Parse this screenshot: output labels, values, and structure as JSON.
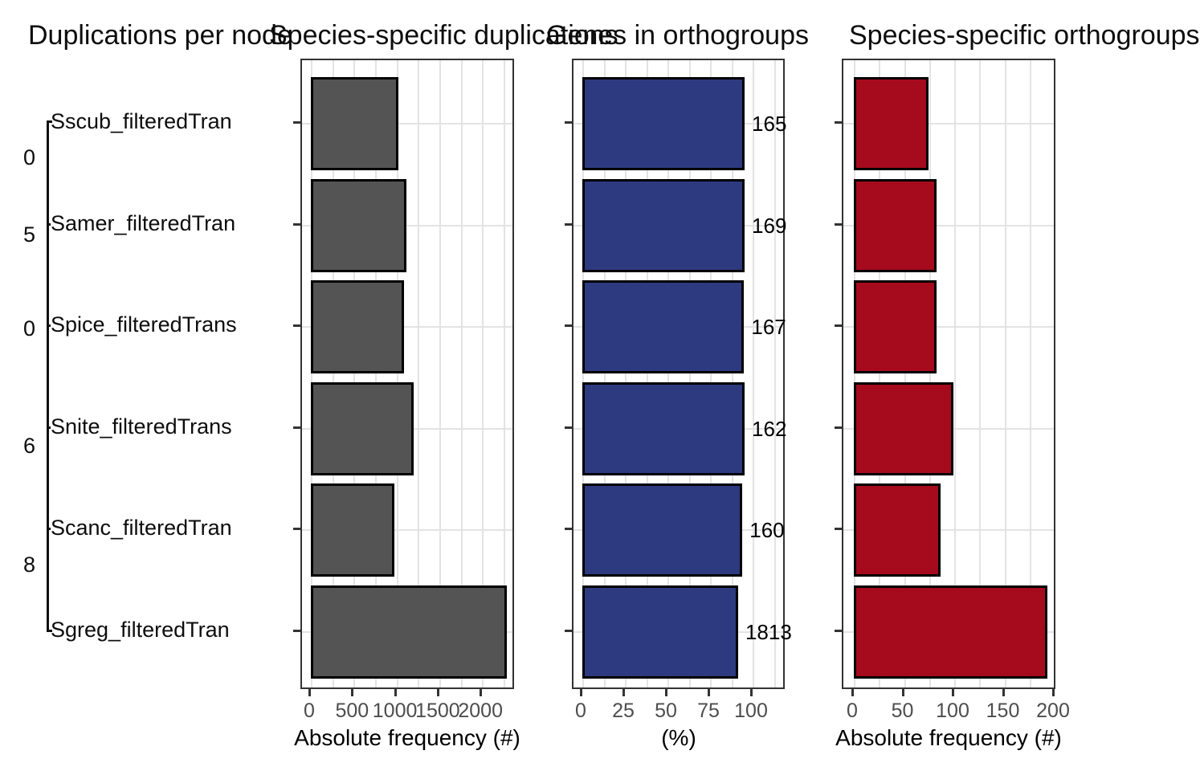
{
  "figure": {
    "background": "#FFFFFF",
    "titles": [
      {
        "text": "Duplications per node",
        "x": 35
      },
      {
        "text": "Species-specific duplications",
        "x": 335
      },
      {
        "text": "Genes in orthogroups",
        "x": 680
      },
      {
        "text": "Species-specific orthogroups",
        "x": 1057
      }
    ]
  },
  "colors": {
    "gray_bar": "#545454",
    "blue_bar": "#2E3A80",
    "red_bar": "#A50B1C",
    "bar_outline": "#000000",
    "gridline": "#E3E3E3",
    "panel_border": "#333333",
    "tick_label": "#4D4D4D"
  },
  "chart_data": [
    {
      "type": "tree",
      "title": "Duplications per node",
      "tips": [
        "Sscub_filteredTran",
        "Samer_filteredTran",
        "Spice_filteredTrans",
        "Snite_filteredTrans",
        "Scanc_filteredTran",
        "Sgreg_filteredTran"
      ],
      "node_label_fragments_clipped": [
        "0",
        "5",
        "0",
        "6",
        "8"
      ]
    },
    {
      "type": "bar",
      "title": "Species-specific duplications",
      "categories": [
        "Sscub_filteredTran",
        "Samer_filteredTran",
        "Spice_filteredTrans",
        "Snite_filteredTrans",
        "Scanc_filteredTran",
        "Sgreg_filteredTran"
      ],
      "values": [
        1020,
        1120,
        1085,
        1205,
        975,
        2285
      ],
      "values_estimated_from_pixels": true,
      "xlabel": "Absolute frequency (#)",
      "xticks": [
        0,
        500,
        1000,
        1500,
        2000
      ],
      "xlim": [
        0,
        2390
      ],
      "grid_minor_step": 250,
      "bar_color": "#545454",
      "legend": "none",
      "grid": "on"
    },
    {
      "type": "bar",
      "title": "Genes in orthogroups",
      "categories": [
        "Sscub_filteredTran",
        "Samer_filteredTran",
        "Spice_filteredTrans",
        "Snite_filteredTrans",
        "Scanc_filteredTran",
        "Sgreg_filteredTran"
      ],
      "values": [
        95.3,
        95.3,
        95.0,
        95.3,
        94.0,
        91.5
      ],
      "values_estimated_from_pixels": true,
      "bar_labels_clipped": [
        "165",
        "169",
        "167",
        "162",
        "160",
        "1813"
      ],
      "xlabel": "(%)",
      "xticks": [
        0,
        25,
        50,
        75,
        100
      ],
      "xlim": [
        0,
        120
      ],
      "grid_minor_step": 12.5,
      "bar_color": "#2E3A80",
      "legend": "none",
      "grid": "on"
    },
    {
      "type": "bar",
      "title": "Species-specific orthogroups",
      "categories": [
        "Sscub_filteredTran",
        "Samer_filteredTran",
        "Spice_filteredTrans",
        "Snite_filteredTrans",
        "Scanc_filteredTran",
        "Sgreg_filteredTran"
      ],
      "values": [
        74,
        82,
        82,
        99,
        86,
        193
      ],
      "values_estimated_from_pixels": true,
      "xlabel": "Absolute frequency (#)",
      "xticks": [
        0,
        50,
        100,
        150,
        200
      ],
      "xlim": [
        0,
        202
      ],
      "grid_minor_step": 25,
      "bar_color": "#A50B1C",
      "legend": "none",
      "grid": "on"
    }
  ]
}
